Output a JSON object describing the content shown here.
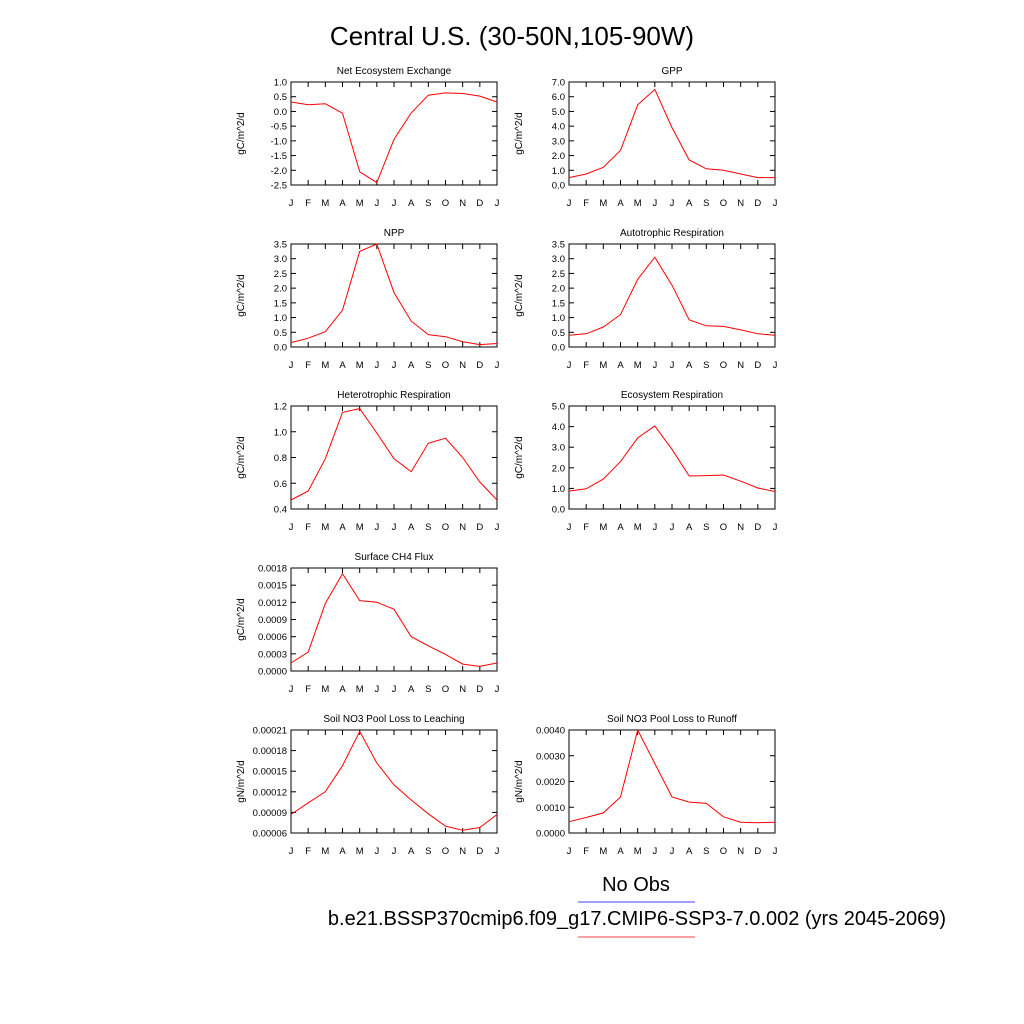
{
  "figure": {
    "title": "Central U.S. (30-50N,105-90W)",
    "legend": {
      "entries": [
        {
          "label": "No Obs",
          "color": "#8080ff"
        },
        {
          "label": "b.e21.BSSP370cmip6.f09_g17.CMIP6-SSP3-7.0.002 (yrs 2045-2069)",
          "color": "#ff8080"
        }
      ]
    }
  },
  "chart_data": [
    {
      "type": "line",
      "title": "Net Ecosystem Exchange",
      "ylabel": "gC/m^2/d",
      "categories": [
        "J",
        "F",
        "M",
        "A",
        "M",
        "J",
        "J",
        "A",
        "S",
        "O",
        "N",
        "D",
        "J"
      ],
      "ylim": [
        -2.5,
        1.0
      ],
      "yticks": [
        "1.0",
        "0.5",
        "0.0",
        "-0.5",
        "-1.0",
        "-1.5",
        "-2.0",
        "-2.5"
      ],
      "ytick_values": [
        1.0,
        0.5,
        0.0,
        -0.5,
        -1.0,
        -1.5,
        -2.0,
        -2.5
      ],
      "series": [
        {
          "color": "#ff0000",
          "values": [
            0.32,
            0.23,
            0.26,
            -0.06,
            -2.05,
            -2.42,
            -0.95,
            -0.05,
            0.55,
            0.63,
            0.61,
            0.52,
            0.32
          ]
        }
      ]
    },
    {
      "type": "line",
      "title": "GPP",
      "ylabel": "gC/m^2/d",
      "categories": [
        "J",
        "F",
        "M",
        "A",
        "M",
        "J",
        "J",
        "A",
        "S",
        "O",
        "N",
        "D",
        "J"
      ],
      "ylim": [
        0.0,
        7.0
      ],
      "yticks": [
        "7.0",
        "6.0",
        "5.0",
        "4.0",
        "3.0",
        "2.0",
        "1.0",
        "0.0"
      ],
      "ytick_values": [
        7.0,
        6.0,
        5.0,
        4.0,
        3.0,
        2.0,
        1.0,
        0.0
      ],
      "series": [
        {
          "color": "#ff0000",
          "values": [
            0.5,
            0.75,
            1.2,
            2.35,
            5.45,
            6.5,
            3.9,
            1.7,
            1.1,
            1.0,
            0.75,
            0.5,
            0.5
          ]
        }
      ]
    },
    {
      "type": "line",
      "title": "NPP",
      "ylabel": "gC/m^2/d",
      "categories": [
        "J",
        "F",
        "M",
        "A",
        "M",
        "J",
        "J",
        "A",
        "S",
        "O",
        "N",
        "D",
        "J"
      ],
      "ylim": [
        0.0,
        3.5
      ],
      "yticks": [
        "3.5",
        "3.0",
        "2.5",
        "2.0",
        "1.5",
        "1.0",
        "0.5",
        "0.0"
      ],
      "ytick_values": [
        3.5,
        3.0,
        2.5,
        2.0,
        1.5,
        1.0,
        0.5,
        0.0
      ],
      "series": [
        {
          "color": "#ff0000",
          "values": [
            0.15,
            0.3,
            0.52,
            1.25,
            3.25,
            3.5,
            1.85,
            0.88,
            0.42,
            0.35,
            0.18,
            0.08,
            0.12
          ]
        }
      ]
    },
    {
      "type": "line",
      "title": "Autotrophic Respiration",
      "ylabel": "gC/m^2/d",
      "categories": [
        "J",
        "F",
        "M",
        "A",
        "M",
        "J",
        "J",
        "A",
        "S",
        "O",
        "N",
        "D",
        "J"
      ],
      "ylim": [
        0.0,
        3.5
      ],
      "yticks": [
        "3.5",
        "3.0",
        "2.5",
        "2.0",
        "1.5",
        "1.0",
        "0.5",
        "0.0"
      ],
      "ytick_values": [
        3.5,
        3.0,
        2.5,
        2.0,
        1.5,
        1.0,
        0.5,
        0.0
      ],
      "series": [
        {
          "color": "#ff0000",
          "values": [
            0.4,
            0.45,
            0.68,
            1.1,
            2.3,
            3.05,
            2.1,
            0.92,
            0.72,
            0.7,
            0.58,
            0.45,
            0.4
          ]
        }
      ]
    },
    {
      "type": "line",
      "title": "Heterotrophic Respiration",
      "ylabel": "gC/m^2/d",
      "categories": [
        "J",
        "F",
        "M",
        "A",
        "M",
        "J",
        "J",
        "A",
        "S",
        "O",
        "N",
        "D",
        "J"
      ],
      "ylim": [
        0.4,
        1.2
      ],
      "yticks": [
        "1.2",
        "1.0",
        "0.8",
        "0.6",
        "0.4"
      ],
      "ytick_values": [
        1.2,
        1.0,
        0.8,
        0.6,
        0.4
      ],
      "series": [
        {
          "color": "#ff0000",
          "values": [
            0.47,
            0.54,
            0.79,
            1.15,
            1.18,
            0.99,
            0.79,
            0.69,
            0.91,
            0.95,
            0.8,
            0.61,
            0.47
          ]
        }
      ]
    },
    {
      "type": "line",
      "title": "Ecosystem Respiration",
      "ylabel": "gC/m^2/d",
      "categories": [
        "J",
        "F",
        "M",
        "A",
        "M",
        "J",
        "J",
        "A",
        "S",
        "O",
        "N",
        "D",
        "J"
      ],
      "ylim": [
        0.0,
        5.0
      ],
      "yticks": [
        "5.0",
        "4.0",
        "3.0",
        "2.0",
        "1.0",
        "0.0"
      ],
      "ytick_values": [
        5.0,
        4.0,
        3.0,
        2.0,
        1.0,
        0.0
      ],
      "series": [
        {
          "color": "#ff0000",
          "values": [
            0.87,
            0.98,
            1.45,
            2.3,
            3.45,
            4.03,
            2.9,
            1.6,
            1.62,
            1.65,
            1.35,
            1.02,
            0.85
          ]
        }
      ]
    },
    {
      "type": "line",
      "title": "Surface CH4 Flux",
      "ylabel": "gC/m^2/d",
      "categories": [
        "J",
        "F",
        "M",
        "A",
        "M",
        "J",
        "J",
        "A",
        "S",
        "O",
        "N",
        "D",
        "J"
      ],
      "ylim": [
        0.0,
        0.0018
      ],
      "yticks": [
        "0.0018",
        "0.0015",
        "0.0012",
        "0.0009",
        "0.0006",
        "0.0003",
        "0.0000"
      ],
      "ytick_values": [
        0.0018,
        0.0015,
        0.0012,
        0.0009,
        0.0006,
        0.0003,
        0.0
      ],
      "series": [
        {
          "color": "#ff0000",
          "values": [
            0.00014,
            0.00033,
            0.00118,
            0.0017,
            0.00123,
            0.0012,
            0.00108,
            0.0006,
            0.00044,
            0.00029,
            0.00012,
            8e-05,
            0.00014
          ]
        }
      ]
    },
    {
      "type": "line",
      "title": "Soil NO3 Pool Loss to Leaching",
      "ylabel": "gN/m^2/d",
      "categories": [
        "J",
        "F",
        "M",
        "A",
        "M",
        "J",
        "J",
        "A",
        "S",
        "O",
        "N",
        "D",
        "J"
      ],
      "ylim": [
        6e-05,
        0.00021
      ],
      "yticks": [
        "0.00021",
        "0.00018",
        "0.00015",
        "0.00012",
        "0.00009",
        "0.00006"
      ],
      "ytick_values": [
        0.00021,
        0.00018,
        0.00015,
        0.00012,
        9e-05,
        6e-05
      ],
      "series": [
        {
          "color": "#ff0000",
          "values": [
            8.7e-05,
            0.000104,
            0.00012,
            0.000158,
            0.000208,
            0.000162,
            0.00013,
            0.000108,
            8.8e-05,
            7e-05,
            6.4e-05,
            6.8e-05,
            8.7e-05
          ]
        }
      ]
    },
    {
      "type": "line",
      "title": "Soil NO3 Pool Loss to Runoff",
      "ylabel": "gN/m^2/d",
      "categories": [
        "J",
        "F",
        "M",
        "A",
        "M",
        "J",
        "J",
        "A",
        "S",
        "O",
        "N",
        "D",
        "J"
      ],
      "ylim": [
        0.0,
        0.004
      ],
      "yticks": [
        "0.0040",
        "0.0030",
        "0.0020",
        "0.0010",
        "0.0000"
      ],
      "ytick_values": [
        0.004,
        0.003,
        0.002,
        0.001,
        0.0
      ],
      "series": [
        {
          "color": "#ff0000",
          "values": [
            0.00044,
            0.0006,
            0.00078,
            0.0014,
            0.004,
            0.0027,
            0.0014,
            0.0012,
            0.00115,
            0.00063,
            0.00042,
            0.0004,
            0.00042
          ]
        }
      ]
    }
  ]
}
